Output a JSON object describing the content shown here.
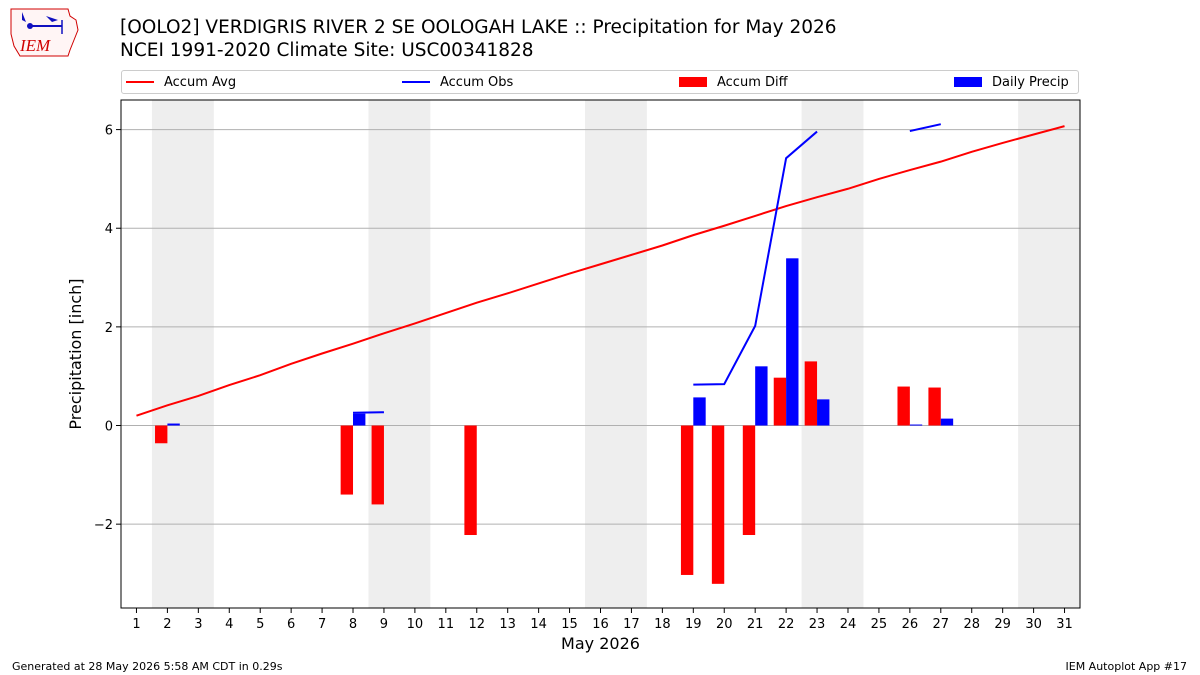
{
  "title_line1": "[OOLO2] VERDIGRIS RIVER 2 SE OOLOGAH LAKE :: Precipitation for May 2026",
  "title_line2": "NCEI 1991-2020 Climate Site: USC00341828",
  "logo_text": "IEM",
  "footer_left": "Generated at 28 May 2026 5:58 AM CDT in 0.29s",
  "footer_right": "IEM Autoplot App #17",
  "colors": {
    "accum_avg": "#ff0000",
    "accum_obs": "#0000ff",
    "accum_diff": "#ff0000",
    "daily_precip": "#0000ff",
    "weekend_band": "#eeeeee",
    "grid": "#b0b0b0"
  },
  "legend": [
    {
      "label": "Accum Avg",
      "kind": "line",
      "color": "#ff0000"
    },
    {
      "label": "Accum Obs",
      "kind": "line",
      "color": "#0000ff"
    },
    {
      "label": "Accum Diff",
      "kind": "bar",
      "color": "#ff0000"
    },
    {
      "label": "Daily Precip",
      "kind": "bar",
      "color": "#0000ff"
    }
  ],
  "chart_data": {
    "type": "bar",
    "xlabel": "May 2026",
    "ylabel": "Precipitation [inch]",
    "xlim": [
      0.5,
      31.5
    ],
    "ylim": [
      -3.7,
      6.6
    ],
    "yticks": [
      -2,
      0,
      2,
      4,
      6
    ],
    "ytick_labels": [
      "−2",
      "0",
      "2",
      "4",
      "6"
    ],
    "x_ticks": [
      1,
      2,
      3,
      4,
      5,
      6,
      7,
      8,
      9,
      10,
      11,
      12,
      13,
      14,
      15,
      16,
      17,
      18,
      19,
      20,
      21,
      22,
      23,
      24,
      25,
      26,
      27,
      28,
      29,
      30,
      31
    ],
    "weekend_bands": [
      [
        1.5,
        3.5
      ],
      [
        8.5,
        10.5
      ],
      [
        15.5,
        17.5
      ],
      [
        22.5,
        24.5
      ],
      [
        29.5,
        31.5
      ]
    ],
    "grid": "horizontal",
    "legend_position": "top",
    "series": [
      {
        "name": "Accum Avg",
        "type": "line",
        "x": [
          1,
          2,
          3,
          4,
          5,
          6,
          7,
          8,
          9,
          10,
          11,
          12,
          13,
          14,
          15,
          16,
          17,
          18,
          19,
          20,
          21,
          22,
          23,
          24,
          25,
          26,
          27,
          28,
          29,
          30,
          31
        ],
        "values": [
          0.2,
          0.41,
          0.6,
          0.82,
          1.02,
          1.25,
          1.46,
          1.66,
          1.87,
          2.07,
          2.28,
          2.49,
          2.68,
          2.88,
          3.08,
          3.27,
          3.46,
          3.65,
          3.86,
          4.05,
          4.25,
          4.45,
          4.63,
          4.8,
          5.0,
          5.18,
          5.35,
          5.55,
          5.73,
          5.9,
          6.07
        ]
      },
      {
        "name": "Accum Obs",
        "type": "line",
        "segments": [
          {
            "x": [
              8,
              9
            ],
            "values": [
              0.26,
              0.27
            ]
          },
          {
            "x": [
              19,
              20,
              21,
              22,
              23
            ],
            "values": [
              0.83,
              0.84,
              2.02,
              5.42,
              5.96
            ]
          },
          {
            "x": [
              26,
              27
            ],
            "values": [
              5.97,
              6.11
            ]
          }
        ]
      },
      {
        "name": "Accum Diff",
        "type": "bar",
        "x": [
          2,
          8,
          9,
          12,
          19,
          20,
          21,
          22,
          23,
          26,
          27
        ],
        "values": [
          -0.36,
          -1.4,
          -1.6,
          -2.22,
          -3.03,
          -3.21,
          -2.22,
          0.97,
          1.3,
          0.79,
          0.77
        ]
      },
      {
        "name": "Daily Precip",
        "type": "bar",
        "x": [
          2,
          8,
          19,
          21,
          22,
          23,
          26,
          27
        ],
        "values": [
          0.04,
          0.24,
          0.57,
          1.2,
          3.39,
          0.53,
          0.02,
          0.14
        ]
      }
    ]
  }
}
